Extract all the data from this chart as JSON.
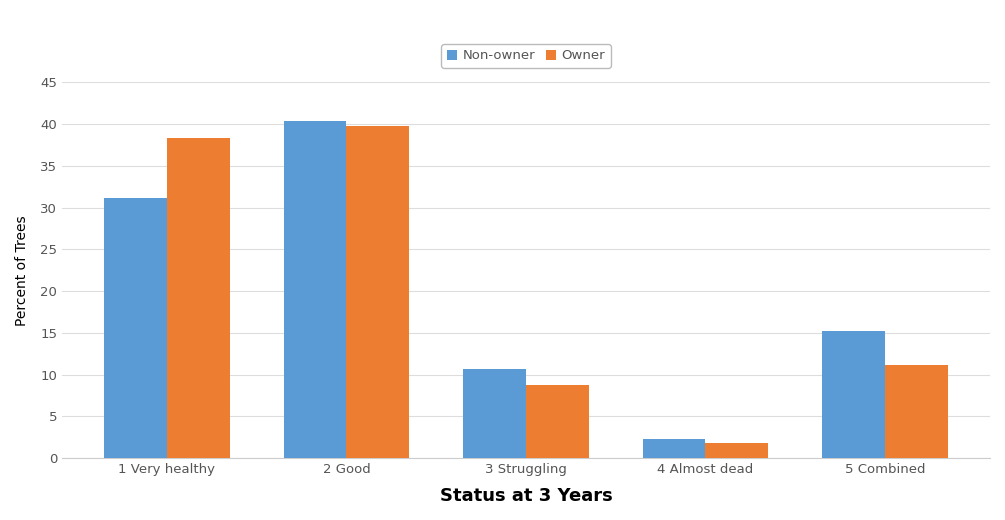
{
  "categories": [
    "1 Very healthy",
    "2 Good",
    "3 Struggling",
    "4 Almost dead",
    "5 Combined"
  ],
  "non_owner": [
    31.1,
    40.4,
    10.7,
    2.3,
    15.2
  ],
  "owner": [
    38.4,
    39.8,
    8.7,
    1.8,
    11.2
  ],
  "non_owner_color": "#5B9BD5",
  "owner_color": "#ED7D31",
  "xlabel": "Status at 3 Years",
  "ylabel": "Percent of Trees",
  "legend_labels": [
    "Non-owner",
    "Owner"
  ],
  "ylim": [
    0,
    45
  ],
  "yticks": [
    0,
    5,
    10,
    15,
    20,
    25,
    30,
    35,
    40,
    45
  ],
  "background_color": "#FFFFFF",
  "plot_bg_color": "#FFFFFF",
  "grid_color": "#DDDDDD",
  "bar_width": 0.35,
  "xlabel_fontsize": 13,
  "ylabel_fontsize": 10,
  "tick_fontsize": 9.5,
  "legend_fontsize": 9.5,
  "spine_color": "#CCCCCC"
}
